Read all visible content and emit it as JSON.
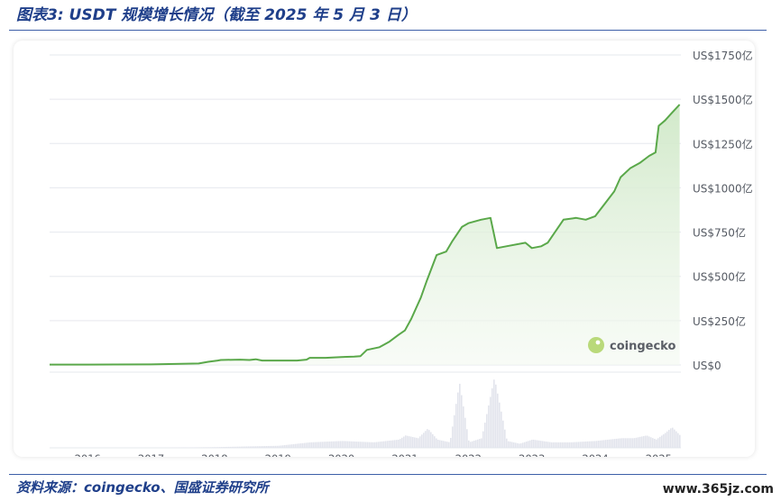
{
  "header": {
    "title": "图表3:  USDT 规模增长情况（截至 2025 年 5 月 3 日）"
  },
  "footer": {
    "source": "资料来源：coingecko、国盛证券研究所",
    "site": "www.365jz.com"
  },
  "watermark": {
    "brand": "coingecko",
    "icon": "gecko-logo-icon"
  },
  "colors": {
    "line": "#5aa84a",
    "fill": "#dcefd6",
    "volume": "#e2e4ec",
    "grid": "#e6e8ee"
  },
  "chart_data": {
    "type": "area",
    "title": "",
    "xlabel": "",
    "ylabel": "",
    "ylim": [
      0,
      1750
    ],
    "y_ticks": [
      0,
      250,
      500,
      750,
      1000,
      1250,
      1500,
      1750
    ],
    "y_tick_labels": [
      "US$0",
      "US$250亿",
      "US$500亿",
      "US$750亿",
      "US$1000亿",
      "US$1250亿",
      "US$1500亿",
      "US$1750亿"
    ],
    "x_range": [
      2015.4,
      2025.35
    ],
    "x_ticks": [
      2016,
      2017,
      2018,
      2019,
      2020,
      2021,
      2022,
      2023,
      2024,
      2025
    ],
    "x_tick_labels": [
      "2016",
      "2017",
      "2018",
      "2019",
      "2020",
      "2021",
      "2022",
      "2023",
      "2024",
      "2025"
    ],
    "grid": true,
    "series": [
      {
        "x": [
          2015.4,
          2016.0,
          2017.0,
          2017.75,
          2017.9,
          2018.05,
          2018.1,
          2018.4,
          2018.55,
          2018.65,
          2018.75,
          2019.0,
          2019.3,
          2019.45,
          2019.5,
          2019.75,
          2020.0,
          2020.2,
          2020.3,
          2020.4,
          2020.6,
          2020.75,
          2020.9,
          2021.0,
          2021.1,
          2021.25,
          2021.35,
          2021.5,
          2021.65,
          2021.75,
          2021.9,
          2022.0,
          2022.2,
          2022.35,
          2022.45,
          2022.6,
          2022.9,
          2023.0,
          2023.15,
          2023.25,
          2023.5,
          2023.7,
          2023.85,
          2024.0,
          2024.15,
          2024.3,
          2024.4,
          2024.55,
          2024.7,
          2024.85,
          2024.95,
          2025.0,
          2025.1,
          2025.2,
          2025.33
        ],
        "values": [
          2,
          2,
          3,
          8,
          18,
          25,
          28,
          30,
          28,
          32,
          25,
          25,
          25,
          30,
          40,
          40,
          45,
          47,
          50,
          85,
          100,
          130,
          170,
          195,
          260,
          380,
          480,
          620,
          640,
          700,
          780,
          800,
          820,
          830,
          660,
          670,
          690,
          660,
          670,
          690,
          820,
          830,
          820,
          840,
          910,
          980,
          1060,
          1110,
          1140,
          1180,
          1200,
          1350,
          1380,
          1420,
          1470
        ]
      }
    ],
    "volume": {
      "x": [
        2015.4,
        2017.0,
        2018.0,
        2019.0,
        2019.5,
        2020.0,
        2020.5,
        2020.9,
        2021.0,
        2021.2,
        2021.35,
        2021.5,
        2021.7,
        2021.85,
        2022.0,
        2022.2,
        2022.4,
        2022.6,
        2022.8,
        2023.0,
        2023.3,
        2023.6,
        2024.0,
        2024.2,
        2024.4,
        2024.6,
        2024.8,
        2024.95,
        2025.1,
        2025.2,
        2025.33
      ],
      "values": [
        0,
        0,
        1,
        3,
        8,
        10,
        8,
        12,
        18,
        14,
        28,
        12,
        8,
        95,
        8,
        14,
        102,
        10,
        6,
        12,
        8,
        8,
        10,
        12,
        14,
        14,
        18,
        12,
        22,
        30,
        18
      ]
    }
  }
}
